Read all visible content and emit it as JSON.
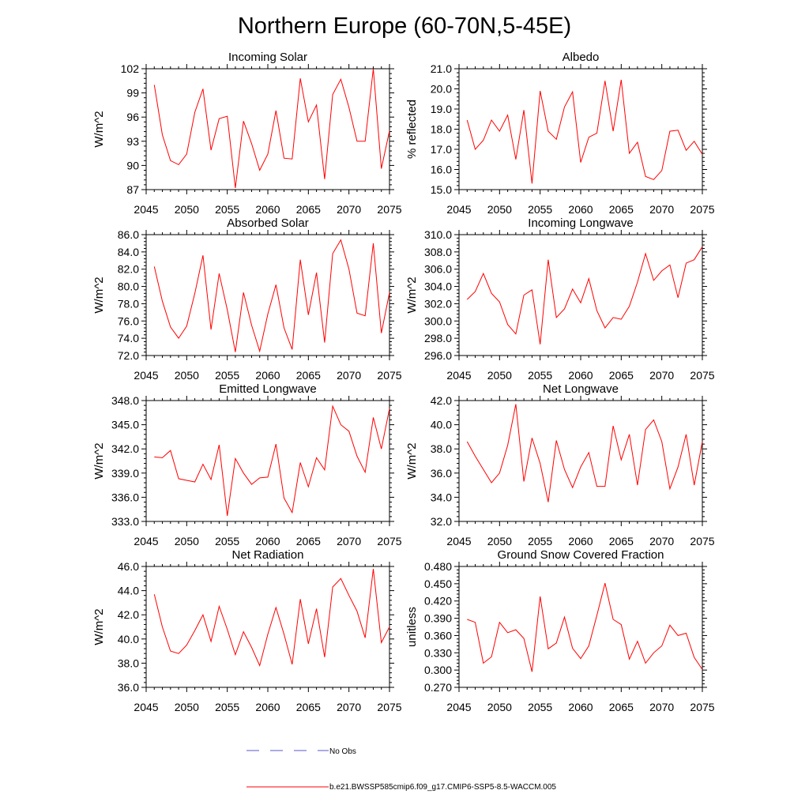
{
  "title": "Northern Europe (60-70N,5-45E)",
  "series_color": "#ff0000",
  "obs_color": "#5555cc",
  "legend": {
    "obs_label": "No Obs",
    "model_label": "b.e21.BWSSP585cmip6.f09_g17.CMIP6-SSP5-8.5-WACCM.005"
  },
  "chart_data": [
    {
      "type": "line",
      "title": "Incoming Solar",
      "xlabel": "",
      "ylabel": "W/m^2",
      "xlim": [
        2045,
        2075
      ],
      "ylim": [
        87,
        102
      ],
      "xticks": [
        "2045",
        "2050",
        "2055",
        "2060",
        "2065",
        "2070",
        "2075"
      ],
      "yticks": [
        "87",
        "90",
        "93",
        "96",
        "99",
        "102"
      ],
      "x": [
        2046,
        2047,
        2048,
        2049,
        2050,
        2051,
        2052,
        2053,
        2054,
        2055,
        2056,
        2057,
        2058,
        2059,
        2060,
        2061,
        2062,
        2063,
        2064,
        2065,
        2066,
        2067,
        2068,
        2069,
        2070,
        2071,
        2072,
        2073,
        2074,
        2075
      ],
      "series": [
        {
          "name": "b.e21.BWSSP585cmip6.f09_g17.CMIP6-SSP5-8.5-WACCM.005",
          "values": [
            100.0,
            93.8,
            90.6,
            90.1,
            91.4,
            96.6,
            99.5,
            91.9,
            95.8,
            96.1,
            87.2,
            95.5,
            92.7,
            89.4,
            91.4,
            96.8,
            90.9,
            90.8,
            100.8,
            95.4,
            97.5,
            88.3,
            98.8,
            100.7,
            97.2,
            93.0,
            93.0,
            102.0,
            89.6,
            94.3
          ]
        }
      ]
    },
    {
      "type": "line",
      "title": "Albedo",
      "xlabel": "",
      "ylabel": "% reflected",
      "xlim": [
        2045,
        2075
      ],
      "ylim": [
        15.0,
        21.0
      ],
      "xticks": [
        "2045",
        "2050",
        "2055",
        "2060",
        "2065",
        "2070",
        "2075"
      ],
      "yticks": [
        "15.0",
        "16.0",
        "17.0",
        "18.0",
        "19.0",
        "20.0",
        "21.0"
      ],
      "x": [
        2046,
        2047,
        2048,
        2049,
        2050,
        2051,
        2052,
        2053,
        2054,
        2055,
        2056,
        2057,
        2058,
        2059,
        2060,
        2061,
        2062,
        2063,
        2064,
        2065,
        2066,
        2067,
        2068,
        2069,
        2070,
        2071,
        2072,
        2073,
        2074,
        2075
      ],
      "series": [
        {
          "name": "b.e21.BWSSP585cmip6.f09_g17.CMIP6-SSP5-8.5-WACCM.005",
          "values": [
            18.45,
            17.0,
            17.45,
            18.45,
            17.9,
            18.7,
            16.5,
            18.95,
            15.3,
            19.9,
            17.9,
            17.5,
            19.1,
            19.85,
            16.35,
            17.6,
            17.8,
            20.4,
            17.9,
            20.45,
            16.8,
            17.35,
            15.65,
            15.5,
            15.95,
            17.9,
            17.95,
            16.95,
            17.4,
            16.75
          ]
        }
      ]
    },
    {
      "type": "line",
      "title": "Absorbed Solar",
      "xlabel": "",
      "ylabel": "W/m^2",
      "xlim": [
        2045,
        2075
      ],
      "ylim": [
        72.0,
        86.0
      ],
      "xticks": [
        "2045",
        "2050",
        "2055",
        "2060",
        "2065",
        "2070",
        "2075"
      ],
      "yticks": [
        "72.0",
        "74.0",
        "76.0",
        "78.0",
        "80.0",
        "82.0",
        "84.0",
        "86.0"
      ],
      "x": [
        2046,
        2047,
        2048,
        2049,
        2050,
        2051,
        2052,
        2053,
        2054,
        2055,
        2056,
        2057,
        2058,
        2059,
        2060,
        2061,
        2062,
        2063,
        2064,
        2065,
        2066,
        2067,
        2068,
        2069,
        2070,
        2071,
        2072,
        2073,
        2074,
        2075
      ],
      "series": [
        {
          "name": "b.e21.BWSSP585cmip6.f09_g17.CMIP6-SSP5-8.5-WACCM.005",
          "values": [
            82.3,
            78.3,
            75.3,
            74.0,
            75.4,
            79.2,
            83.6,
            75.0,
            81.5,
            77.3,
            72.4,
            79.3,
            75.5,
            72.5,
            76.8,
            80.2,
            75.2,
            72.7,
            83.1,
            76.7,
            81.6,
            73.5,
            83.8,
            85.4,
            82.0,
            76.9,
            76.6,
            85.0,
            74.6,
            79.3
          ]
        }
      ]
    },
    {
      "type": "line",
      "title": "Incoming Longwave",
      "xlabel": "",
      "ylabel": "W/m^2",
      "xlim": [
        2045,
        2075
      ],
      "ylim": [
        296.0,
        310.0
      ],
      "xticks": [
        "2045",
        "2050",
        "2055",
        "2060",
        "2065",
        "2070",
        "2075"
      ],
      "yticks": [
        "296.0",
        "298.0",
        "300.0",
        "302.0",
        "304.0",
        "306.0",
        "308.0",
        "310.0"
      ],
      "x": [
        2046,
        2047,
        2048,
        2049,
        2050,
        2051,
        2052,
        2053,
        2054,
        2055,
        2056,
        2057,
        2058,
        2059,
        2060,
        2061,
        2062,
        2063,
        2064,
        2065,
        2066,
        2067,
        2068,
        2069,
        2070,
        2071,
        2072,
        2073,
        2074,
        2075
      ],
      "series": [
        {
          "name": "b.e21.BWSSP585cmip6.f09_g17.CMIP6-SSP5-8.5-WACCM.005",
          "values": [
            302.5,
            303.4,
            305.5,
            303.2,
            302.2,
            299.6,
            298.5,
            303.0,
            303.6,
            297.3,
            307.1,
            300.4,
            301.4,
            303.7,
            302.1,
            304.9,
            301.2,
            299.2,
            300.4,
            300.2,
            301.7,
            304.5,
            307.8,
            304.7,
            305.8,
            306.5,
            302.7,
            306.7,
            307.1,
            308.6
          ]
        }
      ]
    },
    {
      "type": "line",
      "title": "Emitted Longwave",
      "xlabel": "",
      "ylabel": "W/m^2",
      "xlim": [
        2045,
        2075
      ],
      "ylim": [
        333.0,
        348.0
      ],
      "xticks": [
        "2045",
        "2050",
        "2055",
        "2060",
        "2065",
        "2070",
        "2075"
      ],
      "yticks": [
        "333.0",
        "336.0",
        "339.0",
        "342.0",
        "345.0",
        "348.0"
      ],
      "x": [
        2046,
        2047,
        2048,
        2049,
        2050,
        2051,
        2052,
        2053,
        2054,
        2055,
        2056,
        2057,
        2058,
        2059,
        2060,
        2061,
        2062,
        2063,
        2064,
        2065,
        2066,
        2067,
        2068,
        2069,
        2070,
        2071,
        2072,
        2073,
        2074,
        2075
      ],
      "series": [
        {
          "name": "b.e21.BWSSP585cmip6.f09_g17.CMIP6-SSP5-8.5-WACCM.005",
          "values": [
            341.0,
            340.9,
            341.8,
            338.3,
            338.1,
            337.9,
            340.1,
            338.2,
            342.5,
            333.7,
            340.8,
            339.0,
            337.6,
            338.4,
            338.5,
            342.6,
            335.9,
            334.1,
            340.3,
            337.3,
            340.9,
            339.4,
            347.3,
            345.0,
            344.2,
            341.1,
            339.1,
            345.9,
            342.0,
            347.0
          ]
        }
      ]
    },
    {
      "type": "line",
      "title": "Net Longwave",
      "xlabel": "",
      "ylabel": "W/m^2",
      "xlim": [
        2045,
        2075
      ],
      "ylim": [
        32.0,
        42.0
      ],
      "xticks": [
        "2045",
        "2050",
        "2055",
        "2060",
        "2065",
        "2070",
        "2075"
      ],
      "yticks": [
        "32.0",
        "34.0",
        "36.0",
        "38.0",
        "40.0",
        "42.0"
      ],
      "x": [
        2046,
        2047,
        2048,
        2049,
        2050,
        2051,
        2052,
        2053,
        2054,
        2055,
        2056,
        2057,
        2058,
        2059,
        2060,
        2061,
        2062,
        2063,
        2064,
        2065,
        2066,
        2067,
        2068,
        2069,
        2070,
        2071,
        2072,
        2073,
        2074,
        2075
      ],
      "series": [
        {
          "name": "b.e21.BWSSP585cmip6.f09_g17.CMIP6-SSP5-8.5-WACCM.005",
          "values": [
            38.6,
            37.4,
            36.3,
            35.2,
            36.0,
            38.3,
            41.7,
            35.3,
            38.9,
            36.8,
            33.6,
            38.7,
            36.3,
            34.8,
            36.5,
            37.7,
            34.9,
            34.9,
            39.9,
            37.1,
            39.2,
            35.0,
            39.6,
            40.4,
            38.6,
            34.7,
            36.5,
            39.2,
            35.0,
            38.6
          ]
        }
      ]
    },
    {
      "type": "line",
      "title": "Net Radiation",
      "xlabel": "",
      "ylabel": "W/m^2",
      "xlim": [
        2045,
        2075
      ],
      "ylim": [
        36.0,
        46.0
      ],
      "xticks": [
        "2045",
        "2050",
        "2055",
        "2060",
        "2065",
        "2070",
        "2075"
      ],
      "yticks": [
        "36.0",
        "38.0",
        "40.0",
        "42.0",
        "44.0",
        "46.0"
      ],
      "x": [
        2046,
        2047,
        2048,
        2049,
        2050,
        2051,
        2052,
        2053,
        2054,
        2055,
        2056,
        2057,
        2058,
        2059,
        2060,
        2061,
        2062,
        2063,
        2064,
        2065,
        2066,
        2067,
        2068,
        2069,
        2070,
        2071,
        2072,
        2073,
        2074,
        2075
      ],
      "series": [
        {
          "name": "b.e21.BWSSP585cmip6.f09_g17.CMIP6-SSP5-8.5-WACCM.005",
          "values": [
            43.7,
            41.0,
            39.0,
            38.8,
            39.5,
            40.7,
            42.0,
            39.8,
            42.7,
            40.8,
            38.7,
            40.6,
            39.3,
            37.8,
            40.4,
            42.6,
            40.4,
            37.9,
            43.3,
            39.6,
            42.5,
            38.5,
            44.3,
            45.0,
            43.6,
            42.3,
            40.1,
            45.8,
            39.7,
            41.0
          ]
        }
      ]
    },
    {
      "type": "line",
      "title": "Ground Snow Covered Fraction",
      "xlabel": "",
      "ylabel": "unitless",
      "xlim": [
        2045,
        2075
      ],
      "ylim": [
        0.27,
        0.48
      ],
      "xticks": [
        "2045",
        "2050",
        "2055",
        "2060",
        "2065",
        "2070",
        "2075"
      ],
      "yticks": [
        "0.270",
        "0.300",
        "0.330",
        "0.360",
        "0.390",
        "0.420",
        "0.450",
        "0.480"
      ],
      "x": [
        2046,
        2047,
        2048,
        2049,
        2050,
        2051,
        2052,
        2053,
        2054,
        2055,
        2056,
        2057,
        2058,
        2059,
        2060,
        2061,
        2062,
        2063,
        2064,
        2065,
        2066,
        2067,
        2068,
        2069,
        2070,
        2071,
        2072,
        2073,
        2074,
        2075
      ],
      "series": [
        {
          "name": "b.e21.BWSSP585cmip6.f09_g17.CMIP6-SSP5-8.5-WACCM.005",
          "values": [
            0.388,
            0.383,
            0.312,
            0.323,
            0.383,
            0.365,
            0.37,
            0.355,
            0.297,
            0.428,
            0.337,
            0.347,
            0.392,
            0.338,
            0.32,
            0.342,
            0.395,
            0.451,
            0.388,
            0.379,
            0.319,
            0.35,
            0.312,
            0.33,
            0.342,
            0.378,
            0.36,
            0.364,
            0.322,
            0.301
          ]
        }
      ]
    }
  ]
}
